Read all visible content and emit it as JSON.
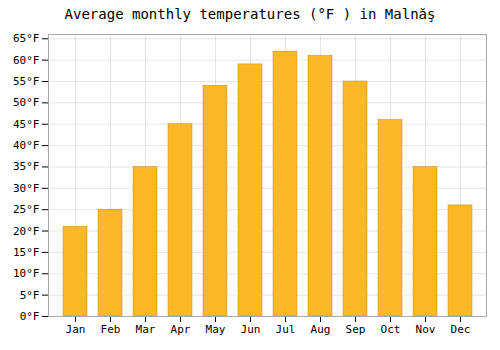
{
  "chart_data": {
    "type": "bar",
    "title": "Average monthly temperatures (°F ) in Malnăş",
    "categories": [
      "Jan",
      "Feb",
      "Mar",
      "Apr",
      "May",
      "Jun",
      "Jul",
      "Aug",
      "Sep",
      "Oct",
      "Nov",
      "Dec"
    ],
    "values": [
      21,
      25,
      35,
      45,
      54,
      59,
      62,
      61,
      55,
      46,
      35,
      26
    ],
    "color": "#FDB827",
    "ylim": [
      0,
      66
    ],
    "yticks": [
      {
        "value": 0,
        "label": "0°F"
      },
      {
        "value": 5,
        "label": "5°F"
      },
      {
        "value": 10,
        "label": "10°F"
      },
      {
        "value": 15,
        "label": "15°F"
      },
      {
        "value": 20,
        "label": "20°F"
      },
      {
        "value": 25,
        "label": "25°F"
      },
      {
        "value": 30,
        "label": "30°F"
      },
      {
        "value": 35,
        "label": "35°F"
      },
      {
        "value": 40,
        "label": "40°F"
      },
      {
        "value": 45,
        "label": "45°F"
      },
      {
        "value": 50,
        "label": "50°F"
      },
      {
        "value": 55,
        "label": "55°F"
      },
      {
        "value": 60,
        "label": "60°F"
      },
      {
        "value": 65,
        "label": "65°F"
      }
    ],
    "grid": true
  }
}
